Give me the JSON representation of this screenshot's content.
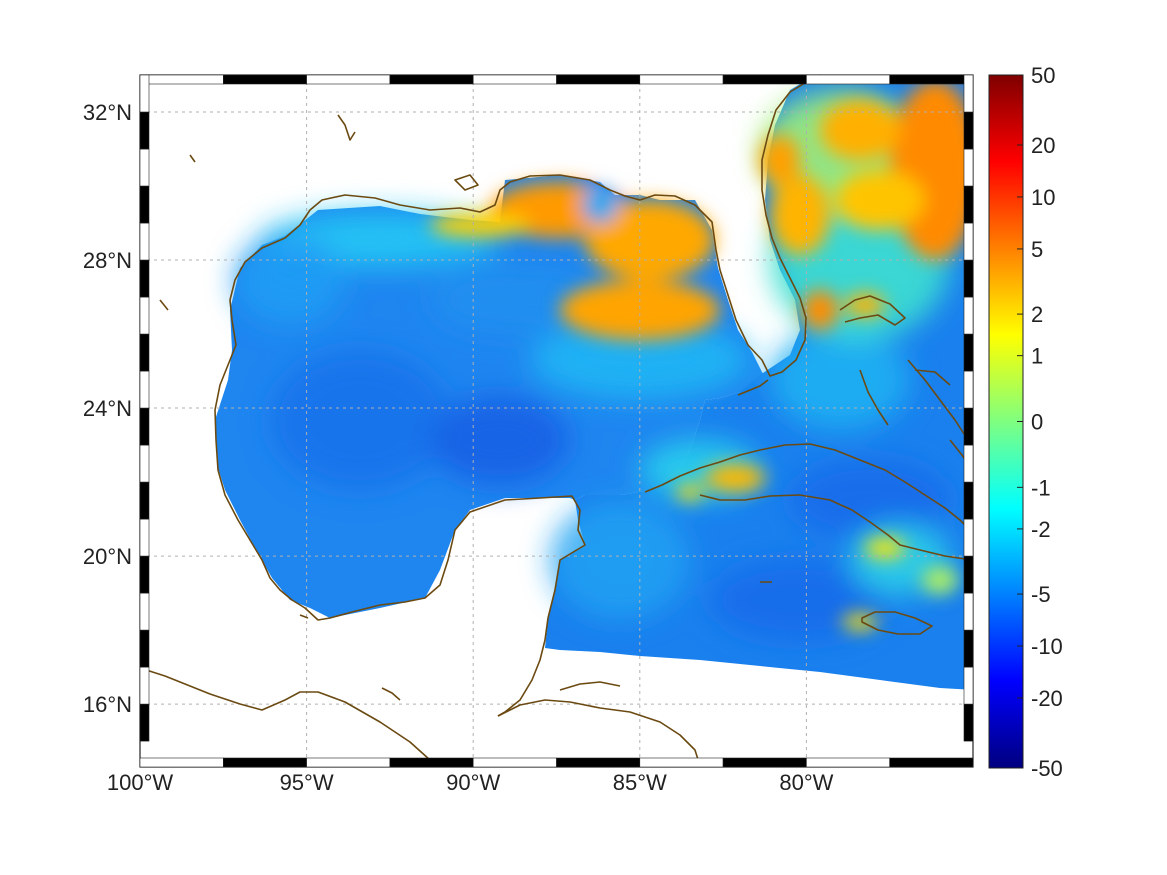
{
  "map": {
    "x_ticks": [
      {
        "lon": -100,
        "label": "100°W"
      },
      {
        "lon": -95,
        "label": "95°W"
      },
      {
        "lon": -90,
        "label": "90°W"
      },
      {
        "lon": -85,
        "label": "85°W"
      },
      {
        "lon": -80,
        "label": "80°W"
      }
    ],
    "y_ticks": [
      {
        "lat": 32,
        "label": "32°N"
      },
      {
        "lat": 28,
        "label": "28°N"
      },
      {
        "lat": 24,
        "label": "24°N"
      },
      {
        "lat": 20,
        "label": "20°N"
      },
      {
        "lat": 16,
        "label": "16°N"
      }
    ],
    "lon_range": [
      -100,
      -75
    ],
    "lat_range": [
      14.3,
      33
    ],
    "land_color": "#ffffff",
    "coast_color": "#6b4a12",
    "grid": true
  },
  "colorbar": {
    "ticks": [
      "50",
      "20",
      "10",
      "5",
      "2",
      "1",
      "0",
      "-1",
      "-2",
      "-5",
      "-10",
      "-20",
      "-50"
    ],
    "tick_values": [
      50,
      20,
      10,
      5,
      2,
      1,
      0,
      -1,
      -2,
      -5,
      -10,
      -20,
      -50
    ],
    "colormap": "jet",
    "colors": [
      "#7f0000",
      "#ff0000",
      "#ff7f00",
      "#ffff00",
      "#7fff7f",
      "#00ffff",
      "#007fff",
      "#0000ff",
      "#00007f"
    ]
  }
}
